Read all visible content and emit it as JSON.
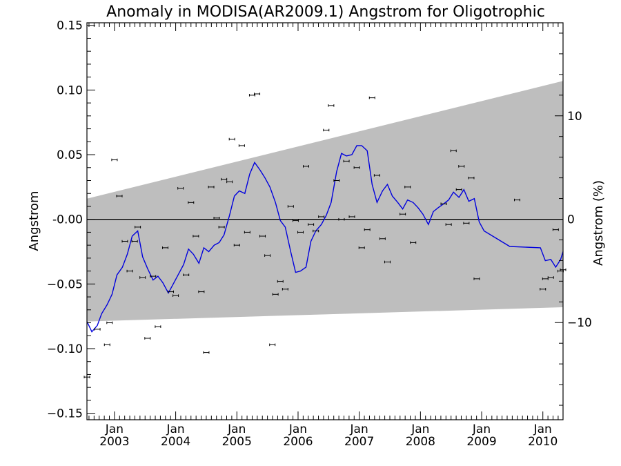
{
  "chart_data": {
    "type": "line",
    "title": "Anomaly in MODISA(AR2009.1) Angstrom for Oligotrophic",
    "ylabel": "Angstrom",
    "y2label": "Angstrom (%)",
    "xlim": [
      2002.55,
      2010.33
    ],
    "ylim": [
      -0.155,
      0.152
    ],
    "y2lim": [
      -19.4,
      19.0
    ],
    "yticks": [
      {
        "value": 0.15,
        "label": "0.15"
      },
      {
        "value": 0.1,
        "label": "0.10"
      },
      {
        "value": 0.05,
        "label": "0.05"
      },
      {
        "value": 0.0,
        "label": "-0.00"
      },
      {
        "value": -0.05,
        "label": "−0.05"
      },
      {
        "value": -0.1,
        "label": "−0.10"
      },
      {
        "value": -0.15,
        "label": "−0.15"
      }
    ],
    "y2ticks": [
      {
        "value": 10,
        "label": "10"
      },
      {
        "value": 0,
        "label": "0"
      },
      {
        "value": -10,
        "label": "−10"
      }
    ],
    "xticks": [
      {
        "value": 2003.0,
        "label": "Jan",
        "year": "2003"
      },
      {
        "value": 2004.0,
        "label": "Jan",
        "year": "2004"
      },
      {
        "value": 2005.0,
        "label": "Jan",
        "year": "2005"
      },
      {
        "value": 2006.0,
        "label": "Jan",
        "year": "2006"
      },
      {
        "value": 2007.0,
        "label": "Jan",
        "year": "2007"
      },
      {
        "value": 2008.0,
        "label": "Jan",
        "year": "2008"
      },
      {
        "value": 2009.0,
        "label": "Jan",
        "year": "2009"
      },
      {
        "value": 2010.0,
        "label": "Jan",
        "year": "2010"
      }
    ],
    "band": {
      "color": "#bebebe",
      "upper": [
        [
          2002.55,
          0.016
        ],
        [
          2010.33,
          0.107
        ]
      ],
      "lower": [
        [
          2002.55,
          -0.079
        ],
        [
          2010.33,
          -0.068
        ]
      ]
    },
    "zero_line_color": "#000000",
    "series": [
      {
        "type": "line",
        "color": "#0000dd",
        "points": [
          [
            2002.55,
            -0.079
          ],
          [
            2002.63,
            -0.087
          ],
          [
            2002.72,
            -0.082
          ],
          [
            2002.79,
            -0.073
          ],
          [
            2002.88,
            -0.066
          ],
          [
            2002.96,
            -0.058
          ],
          [
            2003.04,
            -0.043
          ],
          [
            2003.13,
            -0.037
          ],
          [
            2003.21,
            -0.027
          ],
          [
            2003.29,
            -0.013
          ],
          [
            2003.38,
            -0.009
          ],
          [
            2003.46,
            -0.029
          ],
          [
            2003.54,
            -0.038
          ],
          [
            2003.63,
            -0.047
          ],
          [
            2003.71,
            -0.044
          ],
          [
            2003.79,
            -0.049
          ],
          [
            2003.88,
            -0.057
          ],
          [
            2003.96,
            -0.05
          ],
          [
            2004.04,
            -0.043
          ],
          [
            2004.13,
            -0.035
          ],
          [
            2004.21,
            -0.023
          ],
          [
            2004.29,
            -0.027
          ],
          [
            2004.38,
            -0.034
          ],
          [
            2004.46,
            -0.022
          ],
          [
            2004.54,
            -0.025
          ],
          [
            2004.63,
            -0.02
          ],
          [
            2004.71,
            -0.018
          ],
          [
            2004.79,
            -0.012
          ],
          [
            2004.88,
            0.003
          ],
          [
            2004.96,
            0.018
          ],
          [
            2005.04,
            0.022
          ],
          [
            2005.13,
            0.02
          ],
          [
            2005.21,
            0.035
          ],
          [
            2005.29,
            0.044
          ],
          [
            2005.38,
            0.038
          ],
          [
            2005.46,
            0.032
          ],
          [
            2005.54,
            0.025
          ],
          [
            2005.63,
            0.013
          ],
          [
            2005.71,
            -0.001
          ],
          [
            2005.79,
            -0.006
          ],
          [
            2005.88,
            -0.025
          ],
          [
            2005.96,
            -0.041
          ],
          [
            2006.04,
            -0.04
          ],
          [
            2006.13,
            -0.037
          ],
          [
            2006.21,
            -0.017
          ],
          [
            2006.29,
            -0.009
          ],
          [
            2006.38,
            -0.004
          ],
          [
            2006.46,
            0.003
          ],
          [
            2006.54,
            0.013
          ],
          [
            2006.63,
            0.037
          ],
          [
            2006.71,
            0.051
          ],
          [
            2006.79,
            0.049
          ],
          [
            2006.88,
            0.05
          ],
          [
            2006.96,
            0.057
          ],
          [
            2007.04,
            0.057
          ],
          [
            2007.13,
            0.053
          ],
          [
            2007.21,
            0.027
          ],
          [
            2007.29,
            0.013
          ],
          [
            2007.38,
            0.022
          ],
          [
            2007.46,
            0.027
          ],
          [
            2007.54,
            0.018
          ],
          [
            2007.63,
            0.013
          ],
          [
            2007.71,
            0.008
          ],
          [
            2007.79,
            0.015
          ],
          [
            2007.88,
            0.013
          ],
          [
            2007.96,
            0.009
          ],
          [
            2008.04,
            0.004
          ],
          [
            2008.13,
            -0.004
          ],
          [
            2008.21,
            0.006
          ],
          [
            2008.29,
            0.009
          ],
          [
            2008.38,
            0.012
          ],
          [
            2008.46,
            0.015
          ],
          [
            2008.54,
            0.021
          ],
          [
            2008.63,
            0.017
          ],
          [
            2008.71,
            0.023
          ],
          [
            2008.79,
            0.014
          ],
          [
            2008.88,
            0.016
          ],
          [
            2008.96,
            -0.002
          ],
          [
            2009.04,
            -0.009
          ],
          [
            2009.46,
            -0.021
          ],
          [
            2009.96,
            -0.022
          ],
          [
            2010.04,
            -0.032
          ],
          [
            2010.13,
            -0.031
          ],
          [
            2010.21,
            -0.037
          ],
          [
            2010.29,
            -0.031
          ],
          [
            2010.33,
            -0.025
          ]
        ]
      },
      {
        "type": "scatter",
        "color": "#000000",
        "marker": "errorbar",
        "points": [
          [
            2002.55,
            -0.122
          ],
          [
            2002.72,
            -0.085
          ],
          [
            2002.88,
            -0.097
          ],
          [
            2002.92,
            -0.08
          ],
          [
            2003.0,
            0.046
          ],
          [
            2003.08,
            0.018
          ],
          [
            2003.17,
            -0.017
          ],
          [
            2003.25,
            -0.04
          ],
          [
            2003.33,
            -0.017
          ],
          [
            2003.38,
            -0.006
          ],
          [
            2003.46,
            -0.045
          ],
          [
            2003.54,
            -0.092
          ],
          [
            2003.63,
            -0.044
          ],
          [
            2003.71,
            -0.083
          ],
          [
            2003.83,
            -0.022
          ],
          [
            2003.92,
            -0.056
          ],
          [
            2004.0,
            -0.059
          ],
          [
            2004.08,
            0.024
          ],
          [
            2004.17,
            -0.043
          ],
          [
            2004.25,
            0.013
          ],
          [
            2004.33,
            -0.013
          ],
          [
            2004.42,
            -0.056
          ],
          [
            2004.5,
            -0.103
          ],
          [
            2004.58,
            0.025
          ],
          [
            2004.67,
            0.001
          ],
          [
            2004.75,
            -0.006
          ],
          [
            2004.79,
            0.031
          ],
          [
            2004.88,
            0.029
          ],
          [
            2004.92,
            0.062
          ],
          [
            2005.0,
            -0.02
          ],
          [
            2005.08,
            0.057
          ],
          [
            2005.17,
            -0.01
          ],
          [
            2005.25,
            0.096
          ],
          [
            2005.33,
            0.097
          ],
          [
            2005.42,
            -0.013
          ],
          [
            2005.5,
            -0.028
          ],
          [
            2005.58,
            -0.097
          ],
          [
            2005.63,
            -0.058
          ],
          [
            2005.71,
            -0.048
          ],
          [
            2005.79,
            -0.054
          ],
          [
            2005.88,
            0.01
          ],
          [
            2005.96,
            -0.001
          ],
          [
            2006.04,
            -0.01
          ],
          [
            2006.13,
            0.041
          ],
          [
            2006.21,
            -0.004
          ],
          [
            2006.29,
            -0.009
          ],
          [
            2006.38,
            0.002
          ],
          [
            2006.46,
            0.069
          ],
          [
            2006.54,
            0.088
          ],
          [
            2006.63,
            0.03
          ],
          [
            2006.71,
            0.0
          ],
          [
            2006.79,
            0.045
          ],
          [
            2006.88,
            0.002
          ],
          [
            2006.96,
            0.04
          ],
          [
            2007.04,
            -0.022
          ],
          [
            2007.13,
            -0.008
          ],
          [
            2007.21,
            0.094
          ],
          [
            2007.29,
            0.034
          ],
          [
            2007.38,
            -0.015
          ],
          [
            2007.46,
            -0.033
          ],
          [
            2007.71,
            0.004
          ],
          [
            2007.79,
            0.025
          ],
          [
            2007.88,
            -0.018
          ],
          [
            2008.38,
            0.012
          ],
          [
            2008.46,
            -0.004
          ],
          [
            2008.54,
            0.053
          ],
          [
            2008.63,
            0.023
          ],
          [
            2008.67,
            0.041
          ],
          [
            2008.75,
            -0.003
          ],
          [
            2008.83,
            0.032
          ],
          [
            2008.92,
            -0.046
          ],
          [
            2009.58,
            0.015
          ],
          [
            2010.0,
            -0.054
          ],
          [
            2010.04,
            -0.046
          ],
          [
            2010.13,
            -0.045
          ],
          [
            2010.21,
            -0.008
          ],
          [
            2010.29,
            -0.04
          ],
          [
            2010.33,
            -0.039
          ]
        ]
      }
    ]
  }
}
